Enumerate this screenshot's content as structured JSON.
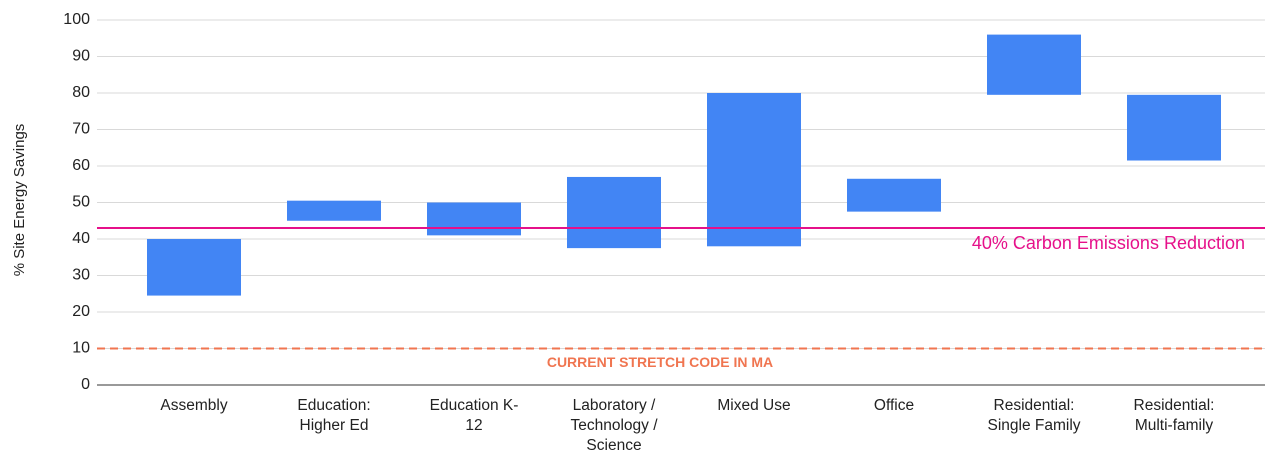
{
  "chart_data": {
    "type": "floating-bar",
    "y_label": "% Site Energy Savings",
    "categories": [
      "Assembly",
      "Education: Higher Ed",
      "Education K-12",
      "Laboratory / Technology / Science",
      "Mixed Use",
      "Office",
      "Residential: Single Family",
      "Residential: Multi-family"
    ],
    "low": [
      24.5,
      45,
      41,
      37.5,
      38,
      47.5,
      79.5,
      61.5
    ],
    "high": [
      40,
      50.5,
      50,
      57,
      80,
      56.5,
      96,
      79.5
    ],
    "color": "#4285f4",
    "ylim": [
      0,
      100
    ],
    "yticks": [
      0,
      10,
      20,
      30,
      40,
      50,
      60,
      70,
      80,
      90,
      100
    ],
    "grid": true,
    "reference_lines": [
      {
        "value": 43,
        "label": "40% Carbon Emissions Reduction",
        "color": "#e6108a",
        "style": "solid"
      },
      {
        "value": 10,
        "label": "CURRENT STRETCH CODE IN MA",
        "color": "#f07550",
        "style": "dashed"
      }
    ]
  }
}
